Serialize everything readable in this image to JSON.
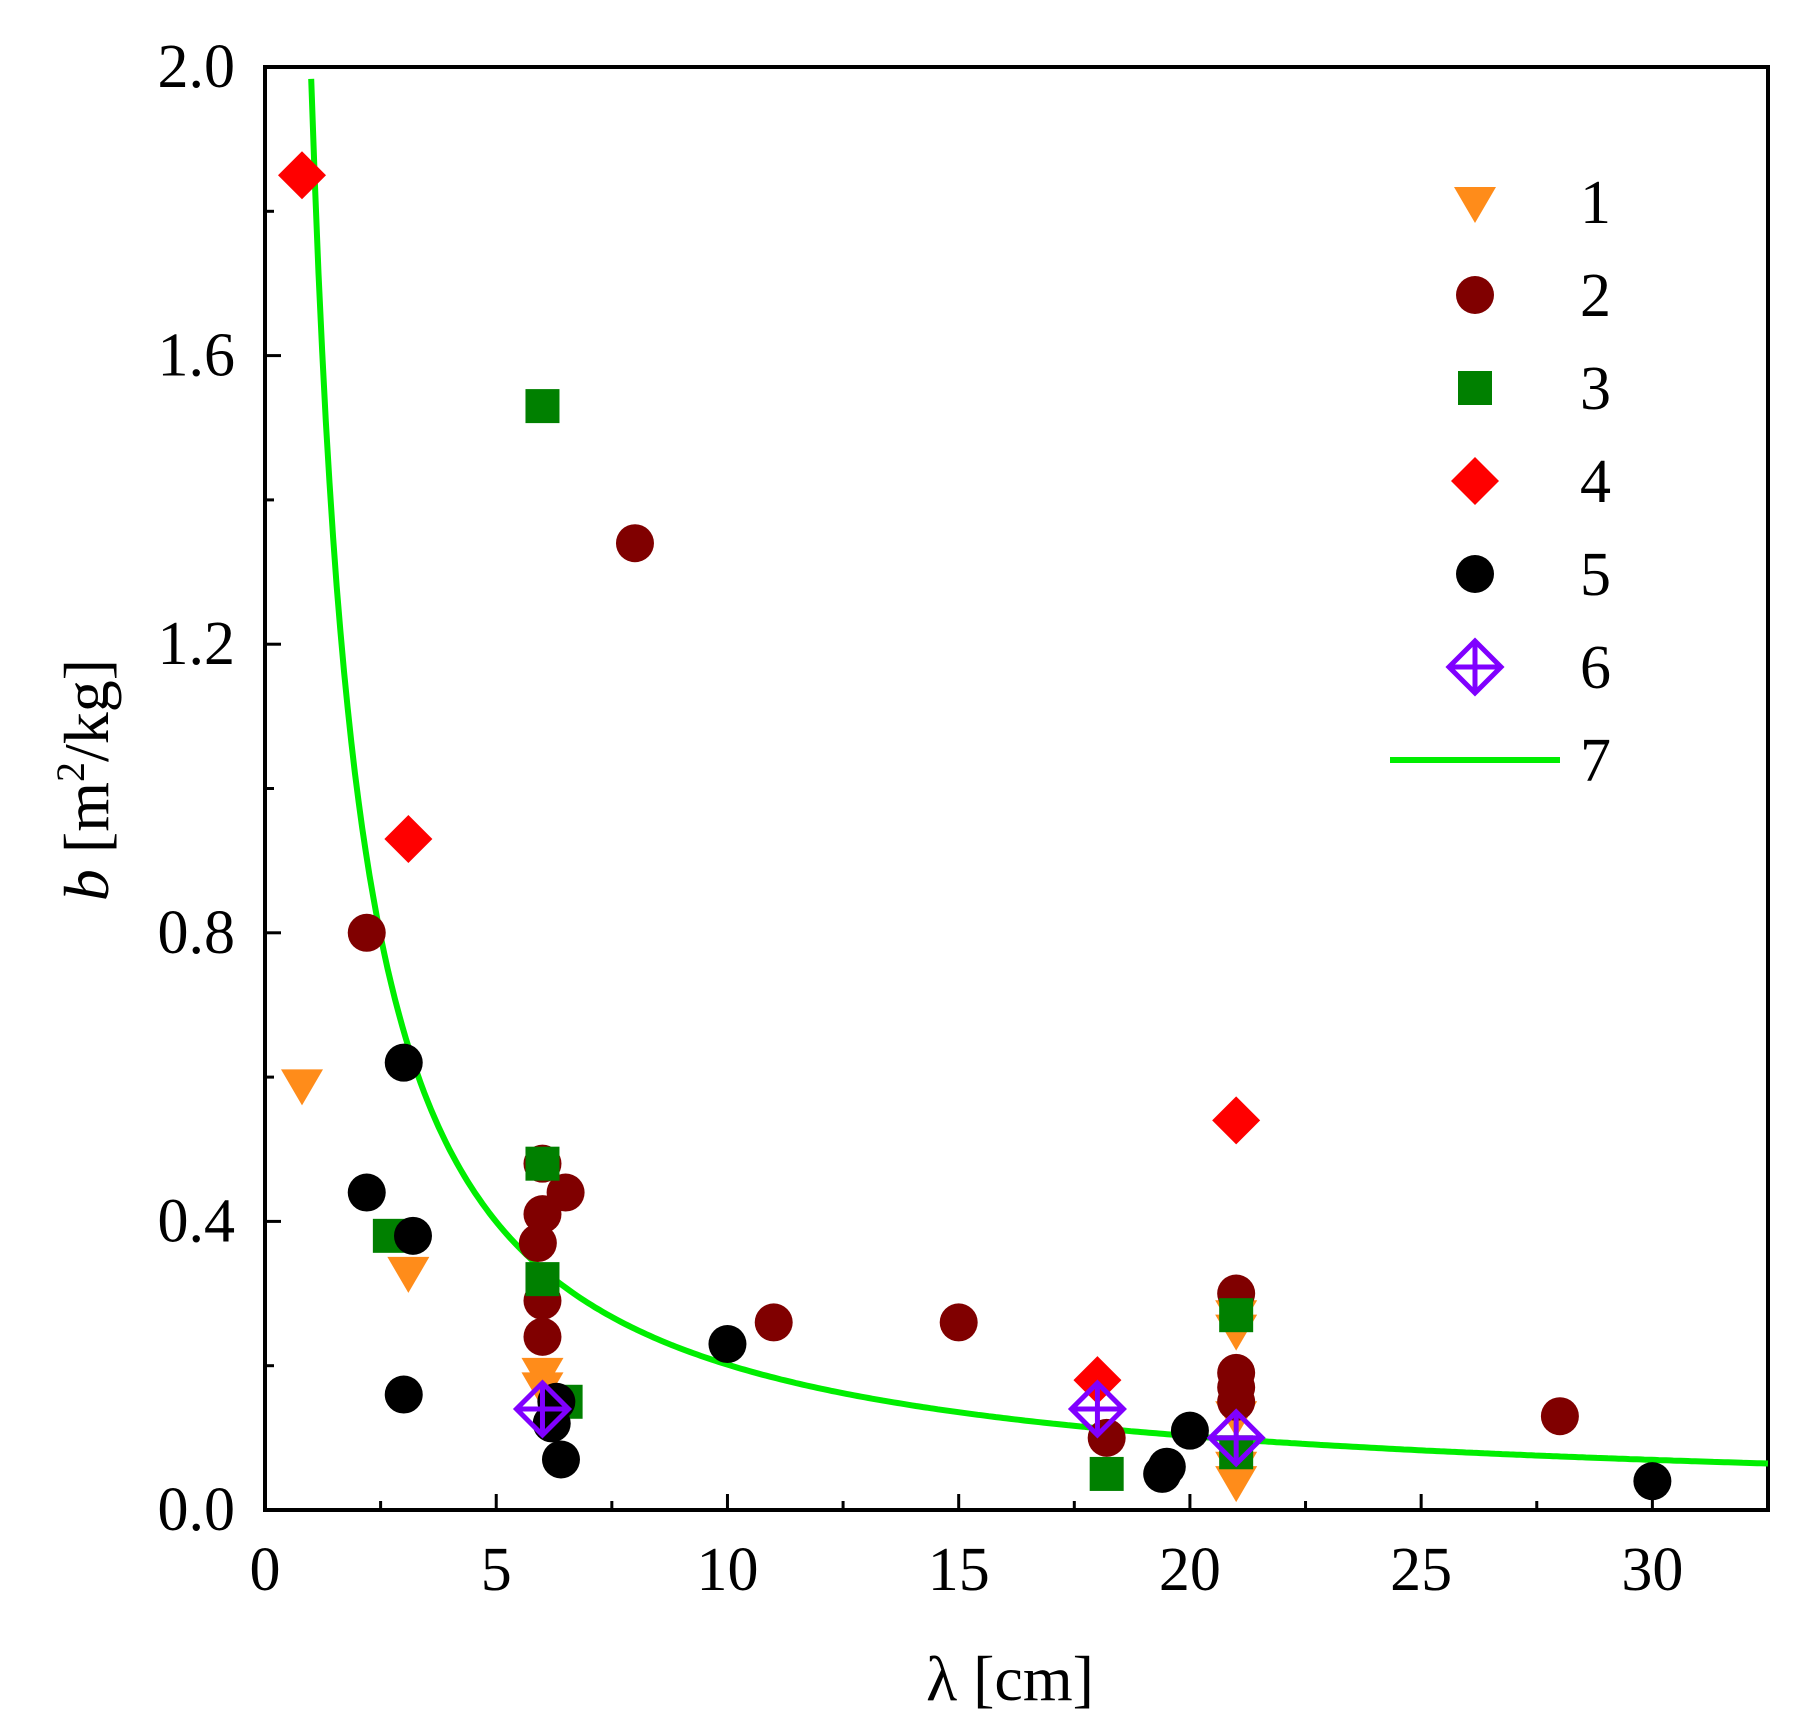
{
  "chart_data": {
    "type": "scatter",
    "xlabel": "λ [cm]",
    "ylabel_italic": "b",
    "ylabel_rest": " [m",
    "ylabel_sup": "2",
    "ylabel_end": "/kg]",
    "xlim": [
      0,
      32.5
    ],
    "ylim": [
      0,
      2.0
    ],
    "x_ticks": [
      0,
      5,
      10,
      15,
      20,
      25,
      30
    ],
    "x_tick_labels": [
      "0",
      "5",
      "10",
      "15",
      "20",
      "25",
      "30"
    ],
    "x_minor_ticks": [
      2.5,
      7.5,
      12.5,
      17.5,
      22.5,
      27.5
    ],
    "y_ticks": [
      0,
      0.4,
      0.8,
      1.2,
      1.6,
      2.0
    ],
    "y_tick_labels": [
      "0.0",
      "0.4",
      "0.8",
      "1.2",
      "1.6",
      "2.0"
    ],
    "y_minor_ticks": [
      0.2,
      0.6,
      1.0,
      1.4,
      1.8
    ],
    "legend_position": "top-right",
    "series": [
      {
        "name": "1",
        "marker": "triangle-down",
        "color": "#ff8c1a",
        "points": [
          [
            0.8,
            0.59
          ],
          [
            3.1,
            0.33
          ],
          [
            6.0,
            0.19
          ],
          [
            6.0,
            0.17
          ],
          [
            21.0,
            0.27
          ],
          [
            21.0,
            0.25
          ],
          [
            21.0,
            0.13
          ],
          [
            21.0,
            0.06
          ],
          [
            21.0,
            0.04
          ]
        ]
      },
      {
        "name": "2",
        "marker": "circle",
        "color": "#800000",
        "points": [
          [
            2.2,
            0.8
          ],
          [
            8.0,
            1.34
          ],
          [
            6.0,
            0.48
          ],
          [
            6.0,
            0.41
          ],
          [
            5.9,
            0.37
          ],
          [
            6.0,
            0.29
          ],
          [
            6.0,
            0.24
          ],
          [
            6.5,
            0.44
          ],
          [
            11.0,
            0.26
          ],
          [
            15.0,
            0.26
          ],
          [
            18.2,
            0.1
          ],
          [
            21.0,
            0.3
          ],
          [
            21.0,
            0.19
          ],
          [
            21.0,
            0.17
          ],
          [
            21.0,
            0.15
          ],
          [
            28.0,
            0.13
          ]
        ]
      },
      {
        "name": "3",
        "marker": "square",
        "color": "#008000",
        "points": [
          [
            6.0,
            1.53
          ],
          [
            6.0,
            0.48
          ],
          [
            6.0,
            0.32
          ],
          [
            2.7,
            0.38
          ],
          [
            6.5,
            0.15
          ],
          [
            18.2,
            0.05
          ],
          [
            21.0,
            0.27
          ],
          [
            21.0,
            0.08
          ]
        ]
      },
      {
        "name": "4",
        "marker": "diamond",
        "color": "#ff0000",
        "points": [
          [
            0.8,
            1.85
          ],
          [
            3.1,
            0.93
          ],
          [
            18.0,
            0.18
          ],
          [
            21.0,
            0.54
          ]
        ]
      },
      {
        "name": "5",
        "marker": "circle",
        "color": "#000000",
        "points": [
          [
            3.0,
            0.62
          ],
          [
            2.2,
            0.44
          ],
          [
            3.2,
            0.38
          ],
          [
            3.0,
            0.16
          ],
          [
            6.3,
            0.15
          ],
          [
            6.2,
            0.12
          ],
          [
            6.4,
            0.07
          ],
          [
            10.0,
            0.23
          ],
          [
            20.0,
            0.11
          ],
          [
            19.4,
            0.05
          ],
          [
            19.5,
            0.06
          ],
          [
            30.0,
            0.04
          ]
        ]
      },
      {
        "name": "6",
        "marker": "diamond-cross",
        "color": "#8000ff",
        "points": [
          [
            6.0,
            0.14
          ],
          [
            18.0,
            0.14
          ],
          [
            21.0,
            0.1
          ]
        ]
      },
      {
        "name": "7",
        "marker": "line",
        "color": "#00ee00",
        "curve": {
          "form": "y = a + c / x",
          "a": 0.0035,
          "c": 1.98,
          "x_start": 1.0,
          "x_end": 32.5
        }
      }
    ]
  }
}
